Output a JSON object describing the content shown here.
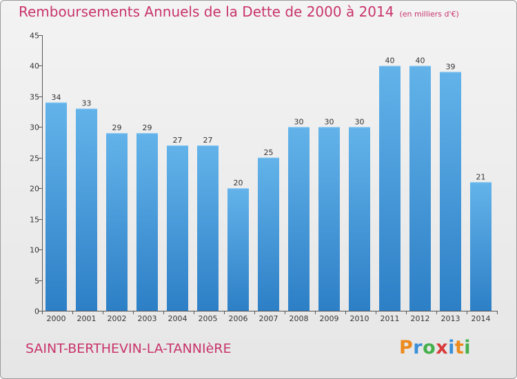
{
  "chart_data": {
    "type": "bar",
    "title": "Remboursements Annuels de la Dette de 2000 à 2014",
    "unit_note": "(en milliers d'€)",
    "categories": [
      "2000",
      "2001",
      "2002",
      "2003",
      "2004",
      "2005",
      "2006",
      "2007",
      "2008",
      "2009",
      "2010",
      "2011",
      "2012",
      "2013",
      "2014"
    ],
    "values": [
      34,
      33,
      29,
      29,
      27,
      27,
      20,
      25,
      30,
      30,
      30,
      40,
      40,
      39,
      21
    ],
    "y_ticks": [
      "0",
      "5",
      "10",
      "15",
      "20",
      "25",
      "30",
      "35",
      "40",
      "45"
    ],
    "ylim": [
      0,
      45
    ],
    "grid": false,
    "xlabel": "",
    "ylabel": ""
  },
  "footer": {
    "town": "SAINT-BERTHEVIN-LA-TANNIèRE",
    "logo_text": "Proxiti"
  },
  "colors": {
    "title": "#c8336b",
    "bar_top": "#63b3ea",
    "bar_bottom": "#2d7fc6",
    "axis": "#555555",
    "logo": [
      "#ec8a1e",
      "#3a8fd9",
      "#45b04b",
      "#d93b3b",
      "#3a8fd9",
      "#ec8a1e",
      "#45b04b"
    ]
  }
}
